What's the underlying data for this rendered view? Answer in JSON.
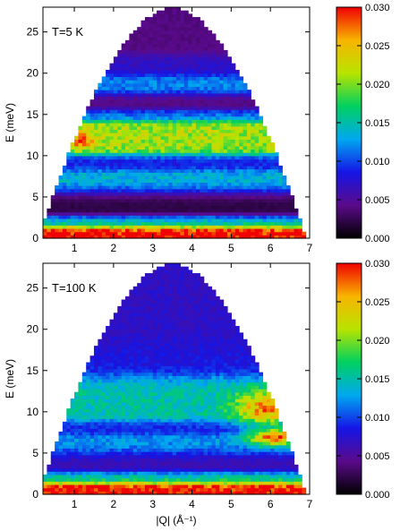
{
  "chart_data": [
    {
      "type": "heatmap",
      "annotation": "T=5 K",
      "xlabel": "",
      "ylabel": "E (meV)",
      "xlim": [
        0.2,
        7.0
      ],
      "ylim": [
        0,
        28
      ],
      "x_ticks": [
        "1",
        "2",
        "3",
        "4",
        "5",
        "6",
        "7"
      ],
      "y_ticks": [
        "0",
        "5",
        "10",
        "15",
        "20",
        "25"
      ],
      "colorbar": {
        "range": [
          0.0,
          0.03
        ],
        "ticks": [
          "0.000",
          "0.005",
          "0.010",
          "0.015",
          "0.020",
          "0.025",
          "0.030"
        ],
        "colormap": [
          "#000000",
          "#5a0a8a",
          "#1515e6",
          "#00a8f0",
          "#00d060",
          "#b8e400",
          "#f8b400",
          "#f00000"
        ]
      },
      "coverage": {
        "shape": "kinematic-parabola",
        "apex_q": 3.5,
        "apex_e": 28,
        "floor_q_min": 0.2,
        "floor_q_max": 7.0,
        "floor_e": 0
      },
      "features": [
        {
          "kind": "band",
          "e": 0.8,
          "width": 0.6,
          "value": 0.031
        },
        {
          "kind": "band",
          "e": 2.0,
          "width": 0.7,
          "value": 0.016
        },
        {
          "kind": "band",
          "e": 4.3,
          "width": 1.6,
          "value": 0.002
        },
        {
          "kind": "band",
          "e": 7.0,
          "width": 1.5,
          "value": 0.014
        },
        {
          "kind": "band",
          "e": 9.2,
          "width": 0.9,
          "value": 0.007
        },
        {
          "kind": "band",
          "e": 12.0,
          "width": 1.8,
          "value": 0.021
        },
        {
          "kind": "band",
          "e": 15.0,
          "width": 0.6,
          "value": 0.011
        },
        {
          "kind": "band",
          "e": 16.6,
          "width": 1.0,
          "value": 0.004
        },
        {
          "kind": "band",
          "e": 18.6,
          "width": 1.1,
          "value": 0.012
        },
        {
          "kind": "band",
          "e": 21.0,
          "width": 1.2,
          "value": 0.007
        },
        {
          "kind": "band",
          "e": 24.5,
          "width": 2.0,
          "value": 0.004
        },
        {
          "kind": "spot",
          "q": 1.2,
          "e": 12.0,
          "rq": 0.25,
          "re": 1.0,
          "value": 0.03
        }
      ]
    },
    {
      "type": "heatmap",
      "annotation": "T=100 K",
      "xlabel": "|Q| (Å⁻¹)",
      "ylabel": "E (meV)",
      "xlim": [
        0.2,
        7.0
      ],
      "ylim": [
        0,
        28
      ],
      "x_ticks": [
        "1",
        "2",
        "3",
        "4",
        "5",
        "6",
        "7"
      ],
      "y_ticks": [
        "0",
        "5",
        "10",
        "15",
        "20",
        "25"
      ],
      "colorbar": {
        "range": [
          0.0,
          0.03
        ],
        "ticks": [
          "0.000",
          "0.005",
          "0.010",
          "0.015",
          "0.020",
          "0.025",
          "0.030"
        ],
        "colormap": [
          "#000000",
          "#5a0a8a",
          "#1515e6",
          "#00a8f0",
          "#00d060",
          "#b8e400",
          "#f8b400",
          "#f00000"
        ]
      },
      "coverage": {
        "shape": "kinematic-parabola",
        "apex_q": 3.5,
        "apex_e": 28,
        "floor_q_min": 0.2,
        "floor_q_max": 7.0,
        "floor_e": 0
      },
      "features": [
        {
          "kind": "band",
          "e": 0.8,
          "width": 0.6,
          "value": 0.031
        },
        {
          "kind": "band",
          "e": 2.0,
          "width": 0.7,
          "value": 0.017
        },
        {
          "kind": "band",
          "e": 4.0,
          "width": 1.5,
          "value": 0.006
        },
        {
          "kind": "band",
          "e": 6.0,
          "width": 1.3,
          "value": 0.013
        },
        {
          "kind": "band",
          "e": 8.0,
          "width": 0.8,
          "value": 0.008
        },
        {
          "kind": "band",
          "e": 11.5,
          "width": 2.5,
          "value": 0.015
        },
        {
          "kind": "band",
          "e": 16.5,
          "width": 2.0,
          "value": 0.008
        },
        {
          "kind": "band",
          "e": 22.0,
          "width": 3.0,
          "value": 0.007
        },
        {
          "kind": "spot",
          "q": 5.9,
          "e": 10.5,
          "rq": 0.8,
          "re": 2.0,
          "value": 0.027
        },
        {
          "kind": "spot",
          "q": 6.1,
          "e": 7.0,
          "rq": 0.6,
          "re": 1.0,
          "value": 0.029
        }
      ]
    }
  ]
}
